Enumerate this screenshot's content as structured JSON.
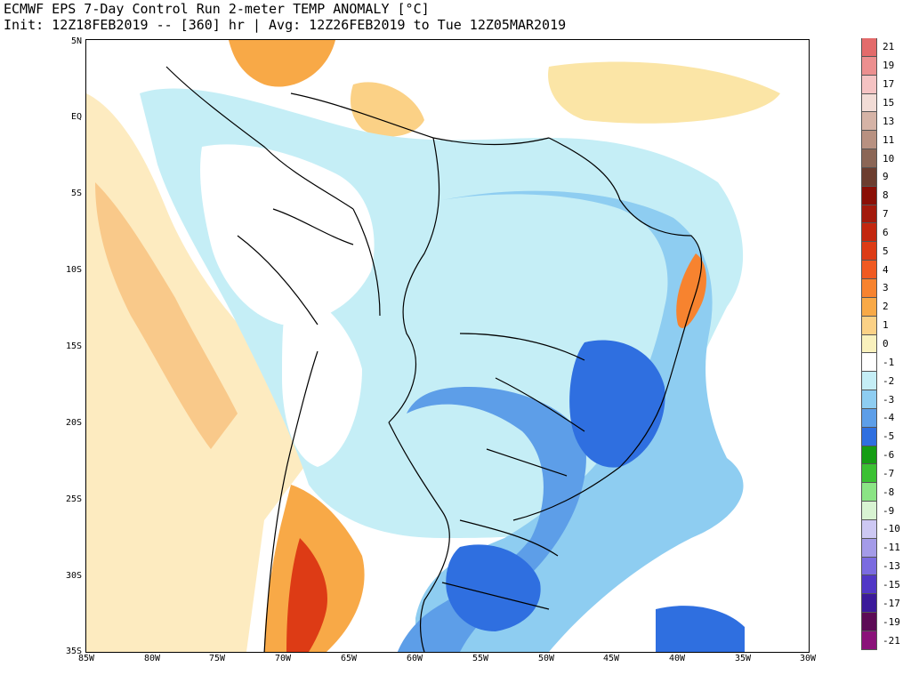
{
  "header": {
    "line1": "ECMWF EPS 7-Day Control Run 2-meter TEMP ANOMALY [°C]",
    "line2": "Init: 12Z18FEB2019 -- [360] hr | Avg: 12Z26FEB2019 to Tue 12Z05MAR2019"
  },
  "map": {
    "lat_ticks": [
      "5N",
      "EQ",
      "5S",
      "10S",
      "15S",
      "20S",
      "25S",
      "30S",
      "35S"
    ],
    "lon_ticks": [
      "85W",
      "80W",
      "75W",
      "70W",
      "65W",
      "60W",
      "55W",
      "50W",
      "45W",
      "40W",
      "35W",
      "30W"
    ]
  },
  "colorbar": {
    "labels": [
      "21",
      "19",
      "17",
      "15",
      "13",
      "11",
      "10",
      "9",
      "8",
      "7",
      "6",
      "5",
      "4",
      "3",
      "2",
      "1",
      "0",
      "-1",
      "-2",
      "-3",
      "-4",
      "-5",
      "-6",
      "-7",
      "-8",
      "-9",
      "-10",
      "-11",
      "-13",
      "-15",
      "-17",
      "-19",
      "-21"
    ],
    "colors": [
      "#e36b6b",
      "#ec8f8f",
      "#f5c3c3",
      "#f2dcd6",
      "#d5b3a6",
      "#b89181",
      "#8b6656",
      "#6c3d2f",
      "#8a0f06",
      "#a31a0c",
      "#c3270f",
      "#dd3b15",
      "#f05a22",
      "#f7832f",
      "#f8a947",
      "#fbd186",
      "#f9f1bd",
      "#ffffff",
      "#c5eef6",
      "#8ecdf1",
      "#5d9ee8",
      "#2f6fe0",
      "#159d14",
      "#3bc133",
      "#8be485",
      "#d8f3d2",
      "#cdc8f3",
      "#a49be8",
      "#7b6be0",
      "#5137c6",
      "#3b1a9a",
      "#5c0b55",
      "#8a1279",
      "#c02fa5",
      "#f09be0"
    ]
  }
}
